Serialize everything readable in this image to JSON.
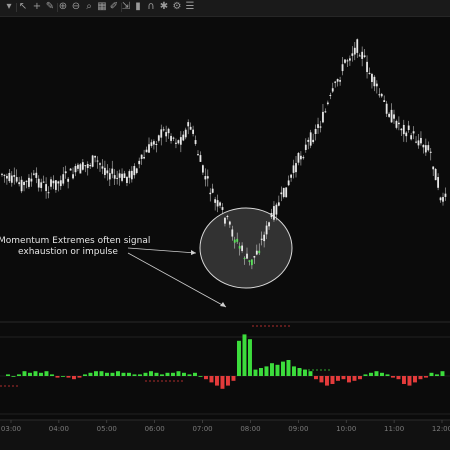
{
  "toolbar": {
    "icons": [
      "menu-chevron-icon",
      "cursor-icon",
      "crosshair-icon",
      "pencil-icon",
      "zoom-in-icon",
      "zoom-out-icon",
      "search-icon",
      "grid-icon",
      "draw-tools-icon",
      "measure-icon",
      "bar-type-icon",
      "magnet-icon",
      "gear-icon",
      "settings-icon",
      "objects-icon"
    ]
  },
  "annotation": {
    "line1": "Momentum Extremes often signal",
    "line2": "exhaustion or impulse"
  },
  "time_axis": {
    "labels": [
      "03:00",
      "04:00",
      "05:00",
      "06:00",
      "07:00",
      "08:00",
      "09:00",
      "10:00",
      "11:00",
      "12:00"
    ]
  },
  "chart_data": [
    {
      "type": "candlestick",
      "xlabel": "",
      "ylabel": "",
      "x_ticks": [
        "03:00",
        "04:00",
        "05:00",
        "06:00",
        "07:00",
        "08:00",
        "09:00",
        "10:00",
        "11:00",
        "12:00"
      ],
      "close_trend": [
        [
          "02:45",
          172
        ],
        [
          "03:00",
          180
        ],
        [
          "03:15",
          185
        ],
        [
          "03:30",
          178
        ],
        [
          "03:45",
          188
        ],
        [
          "04:00",
          182
        ],
        [
          "04:15",
          175
        ],
        [
          "04:30",
          168
        ],
        [
          "04:45",
          160
        ],
        [
          "05:00",
          170
        ],
        [
          "05:15",
          180
        ],
        [
          "05:30",
          175
        ],
        [
          "05:45",
          160
        ],
        [
          "06:00",
          140
        ],
        [
          "06:15",
          130
        ],
        [
          "06:30",
          142
        ],
        [
          "06:45",
          125
        ],
        [
          "07:00",
          170
        ],
        [
          "07:15",
          200
        ],
        [
          "07:30",
          220
        ],
        [
          "07:45",
          245
        ],
        [
          "08:00",
          265
        ],
        [
          "08:15",
          240
        ],
        [
          "08:30",
          212
        ],
        [
          "08:45",
          190
        ],
        [
          "09:00",
          160
        ],
        [
          "09:15",
          140
        ],
        [
          "09:30",
          120
        ],
        [
          "09:45",
          90
        ],
        [
          "10:00",
          60
        ],
        [
          "10:15",
          45
        ],
        [
          "10:30",
          75
        ],
        [
          "10:45",
          100
        ],
        [
          "11:00",
          120
        ],
        [
          "11:15",
          130
        ],
        [
          "11:30",
          140
        ],
        [
          "11:45",
          150
        ],
        [
          "12:00",
          200
        ]
      ],
      "colors": {
        "body": "#e8e8e8",
        "wick": "#bdbdbd",
        "highlight_up": "#3cdc3c"
      }
    },
    {
      "type": "bar",
      "name": "momentum-histogram",
      "positive_color": "#3cdc3c",
      "negative_color": "#e33b3b",
      "values": [
        0.1,
        0.0,
        0.1,
        0.3,
        0.2,
        0.3,
        0.2,
        0.3,
        0.1,
        -0.1,
        0.0,
        -0.1,
        -0.2,
        -0.1,
        0.1,
        0.2,
        0.3,
        0.3,
        0.2,
        0.2,
        0.3,
        0.2,
        0.2,
        0.1,
        0.1,
        0.2,
        0.3,
        0.2,
        0.1,
        0.2,
        0.2,
        0.3,
        0.2,
        0.1,
        0.2,
        0.0,
        -0.2,
        -0.4,
        -0.6,
        -0.8,
        -0.6,
        -0.3,
        2.2,
        2.6,
        2.3,
        0.4,
        0.5,
        0.6,
        0.8,
        0.7,
        0.9,
        1.0,
        0.6,
        0.5,
        0.4,
        0.3,
        -0.2,
        -0.4,
        -0.6,
        -0.5,
        -0.3,
        -0.2,
        -0.4,
        -0.3,
        -0.2,
        0.1,
        0.2,
        0.3,
        0.2,
        0.1,
        -0.1,
        -0.2,
        -0.5,
        -0.6,
        -0.4,
        -0.2,
        -0.1,
        0.2,
        0.1,
        0.3
      ]
    }
  ]
}
